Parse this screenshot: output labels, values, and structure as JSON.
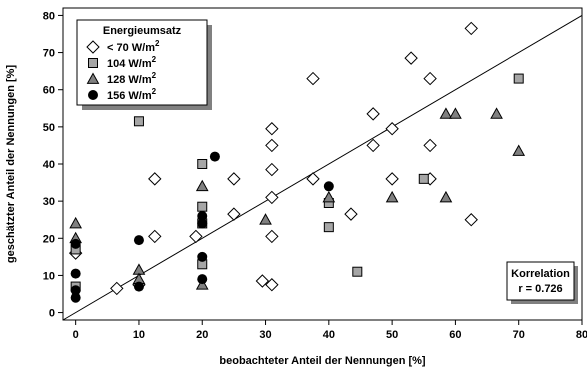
{
  "chart_data": {
    "type": "scatter",
    "xlabel": "beobachteter Anteil der Nennungen [%]",
    "ylabel": "geschätzter Anteil der Nennungen [%]",
    "xlim": [
      -2,
      80
    ],
    "ylim": [
      -2,
      82
    ],
    "xticks": [
      "0",
      "10",
      "20",
      "30",
      "40",
      "50",
      "60",
      "70",
      "80"
    ],
    "yticks": [
      "0",
      "10",
      "20",
      "30",
      "40",
      "50",
      "60",
      "70",
      "80"
    ],
    "grid": false,
    "identity_line": true,
    "legend": {
      "title": "Energieumsatz",
      "placement": "top-left",
      "entries": [
        {
          "label": "< 70 W/m",
          "sup": "2",
          "marker": "diamond-open"
        },
        {
          "label": "104 W/m",
          "sup": "2",
          "marker": "square-gray"
        },
        {
          "label": "128 W/m",
          "sup": "2",
          "marker": "triangle-gray"
        },
        {
          "label": "156 W/m",
          "sup": "2",
          "marker": "circle-black"
        }
      ]
    },
    "annotation": {
      "title": "Korrelation",
      "value": "r = 0.726",
      "placement": "bottom-right"
    },
    "series": [
      {
        "marker": "diamond-open",
        "points": [
          [
            0,
            16
          ],
          [
            6.5,
            6.5
          ],
          [
            10,
            7.5
          ],
          [
            12.5,
            36
          ],
          [
            12.5,
            20.5
          ],
          [
            19,
            20.5
          ],
          [
            25,
            36
          ],
          [
            25,
            26.5
          ],
          [
            29.5,
            8.5
          ],
          [
            31,
            7.5
          ],
          [
            31,
            49.5
          ],
          [
            31,
            45
          ],
          [
            31,
            38.5
          ],
          [
            31,
            31
          ],
          [
            31,
            20.5
          ],
          [
            37.5,
            63
          ],
          [
            37.5,
            36
          ],
          [
            43.5,
            26.5
          ],
          [
            47,
            53.5
          ],
          [
            47,
            45
          ],
          [
            50,
            49.5
          ],
          [
            50,
            36
          ],
          [
            53,
            68.5
          ],
          [
            56,
            63
          ],
          [
            56,
            45
          ],
          [
            56,
            36
          ],
          [
            62.5,
            76.5
          ],
          [
            62.5,
            25
          ]
        ]
      },
      {
        "marker": "square-gray",
        "points": [
          [
            0,
            17
          ],
          [
            0,
            7
          ],
          [
            10,
            51.5
          ],
          [
            20,
            40
          ],
          [
            20,
            28.5
          ],
          [
            20,
            24
          ],
          [
            20,
            13
          ],
          [
            40,
            29.5
          ],
          [
            40,
            23
          ],
          [
            44.5,
            11
          ],
          [
            55,
            36
          ],
          [
            70,
            63
          ]
        ]
      },
      {
        "marker": "triangle-gray",
        "points": [
          [
            0,
            24
          ],
          [
            0,
            20
          ],
          [
            10,
            11.5
          ],
          [
            10,
            9
          ],
          [
            20,
            34
          ],
          [
            20,
            7.5
          ],
          [
            30,
            25
          ],
          [
            40,
            31
          ],
          [
            50,
            31
          ],
          [
            58.5,
            53.5
          ],
          [
            58.5,
            31
          ],
          [
            60,
            53.5
          ],
          [
            66.5,
            53.5
          ],
          [
            70,
            43.5
          ]
        ]
      },
      {
        "marker": "circle-black",
        "points": [
          [
            0,
            18.5
          ],
          [
            0,
            10.5
          ],
          [
            0,
            6
          ],
          [
            0,
            4
          ],
          [
            10,
            19.5
          ],
          [
            10,
            7
          ],
          [
            20,
            26
          ],
          [
            20,
            24
          ],
          [
            20,
            15
          ],
          [
            20,
            9
          ],
          [
            22,
            42
          ],
          [
            40,
            34
          ]
        ]
      }
    ]
  }
}
